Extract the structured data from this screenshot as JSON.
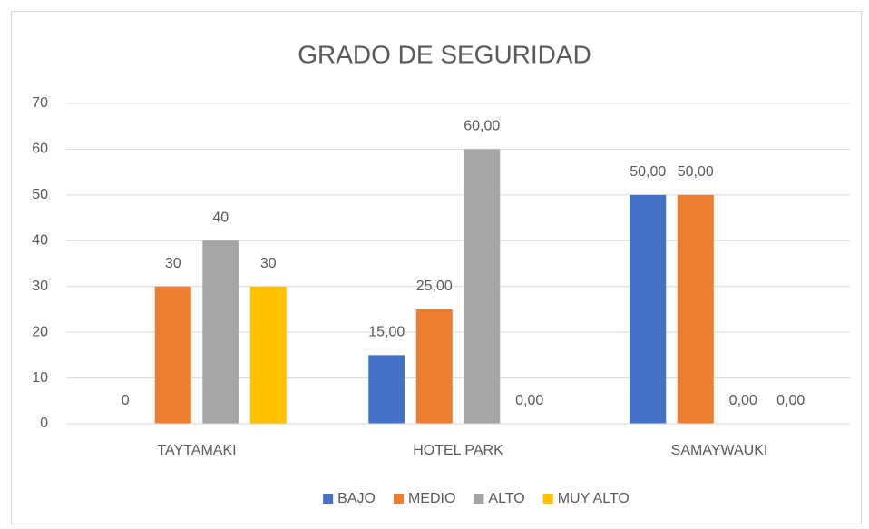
{
  "chart_data": {
    "type": "bar",
    "title": "GRADO DE SEGURIDAD",
    "categories": [
      "TAYTAMAKI",
      "HOTEL PARK",
      "SAMAYWAUKI"
    ],
    "series": [
      {
        "name": "BAJO",
        "color": "#4472c4",
        "values": [
          0,
          15,
          50
        ],
        "value_labels": [
          "0",
          "15,00",
          "50,00"
        ]
      },
      {
        "name": "MEDIO",
        "color": "#ed7d31",
        "values": [
          30,
          25,
          50
        ],
        "value_labels": [
          "30",
          "25,00",
          "50,00"
        ]
      },
      {
        "name": "ALTO",
        "color": "#a5a5a5",
        "values": [
          40,
          60,
          0
        ],
        "value_labels": [
          "40",
          "60,00",
          "0,00"
        ]
      },
      {
        "name": "MUY ALTO",
        "color": "#ffc000",
        "values": [
          30,
          0,
          0
        ],
        "value_labels": [
          "30",
          "0,00",
          "0,00"
        ]
      }
    ],
    "ylim": [
      0,
      70
    ],
    "yticks": [
      0,
      10,
      20,
      30,
      40,
      50,
      60,
      70
    ],
    "grid": true,
    "legend": "bottom"
  }
}
